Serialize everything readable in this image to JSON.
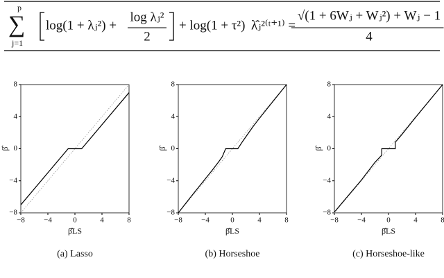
{
  "formula": {
    "sum": "∑",
    "sum_upper": "p",
    "sum_lower": "j=1",
    "bracket_text": "log(1 + λⱼ²) +",
    "frac_num": "log λⱼ²",
    "frac_den": "2",
    "tail": "+ log(1 + τ²)",
    "rhs_lhs": "λ̂ⱼ²⁽ᵗ⁺¹⁾ =",
    "rhs_num": "√(1 + 6Wⱼ + Wⱼ²) + Wⱼ − 1",
    "rhs_den": "4"
  },
  "chart_data": [
    {
      "type": "line",
      "caption": "(a) Lasso",
      "xlabel": "β̂LS",
      "ylabel": "β̂",
      "x": [
        -8,
        -1,
        1,
        8
      ],
      "values": [
        -7,
        0,
        0,
        7
      ],
      "color": "#000000",
      "identity_line": true,
      "xlim": [
        -8,
        8
      ],
      "ylim": [
        -8,
        8
      ],
      "xticks": [
        {
          "value": -8,
          "label": "−8"
        },
        {
          "value": -4,
          "label": "−4"
        },
        0,
        4,
        8
      ],
      "yticks": [
        {
          "value": -8,
          "label": "−8"
        },
        {
          "value": -4,
          "label": "−4"
        },
        0,
        4,
        8
      ]
    },
    {
      "type": "line",
      "caption": "(b) Horseshoe",
      "xlabel": "β̂LS",
      "ylabel": "β̂",
      "x": [
        -8,
        -6,
        -4,
        -3,
        -2,
        -1.5,
        -1,
        0,
        0.8,
        1.5,
        2,
        3,
        4,
        6,
        8
      ],
      "values": [
        -8,
        -5.85,
        -3.75,
        -2.7,
        -1.6,
        -1,
        0,
        0,
        0,
        0.9,
        1.5,
        2.7,
        3.8,
        5.9,
        8
      ],
      "color": "#000000",
      "identity_line": true,
      "xlim": [
        -8,
        8
      ],
      "ylim": [
        -8,
        8
      ],
      "xticks": [
        {
          "value": -8,
          "label": "−8"
        },
        {
          "value": -4,
          "label": "−4"
        },
        0,
        4,
        8
      ],
      "yticks": [
        {
          "value": -8,
          "label": "−8"
        },
        {
          "value": -4,
          "label": "−4"
        },
        0,
        4,
        8
      ]
    },
    {
      "type": "line",
      "caption": "(c) Horseshoe-like",
      "xlabel": "β̂LS",
      "ylabel": "β̂",
      "x": [
        -8,
        -4,
        -2,
        -1,
        -1,
        1,
        1,
        2,
        4,
        8
      ],
      "values": [
        -7.9,
        -3.9,
        -1.7,
        -0.8,
        0,
        0,
        0.8,
        1.8,
        3.9,
        8
      ],
      "color": "#000000",
      "identity_line": true,
      "xlim": [
        -8,
        8
      ],
      "ylim": [
        -8,
        8
      ],
      "xticks": [
        {
          "value": -8,
          "label": "−8"
        },
        {
          "value": -4,
          "label": "−4"
        },
        0,
        4,
        8
      ],
      "yticks": [
        {
          "value": -8,
          "label": "−8"
        },
        {
          "value": -4,
          "label": "−4"
        },
        0,
        4,
        8
      ]
    }
  ]
}
